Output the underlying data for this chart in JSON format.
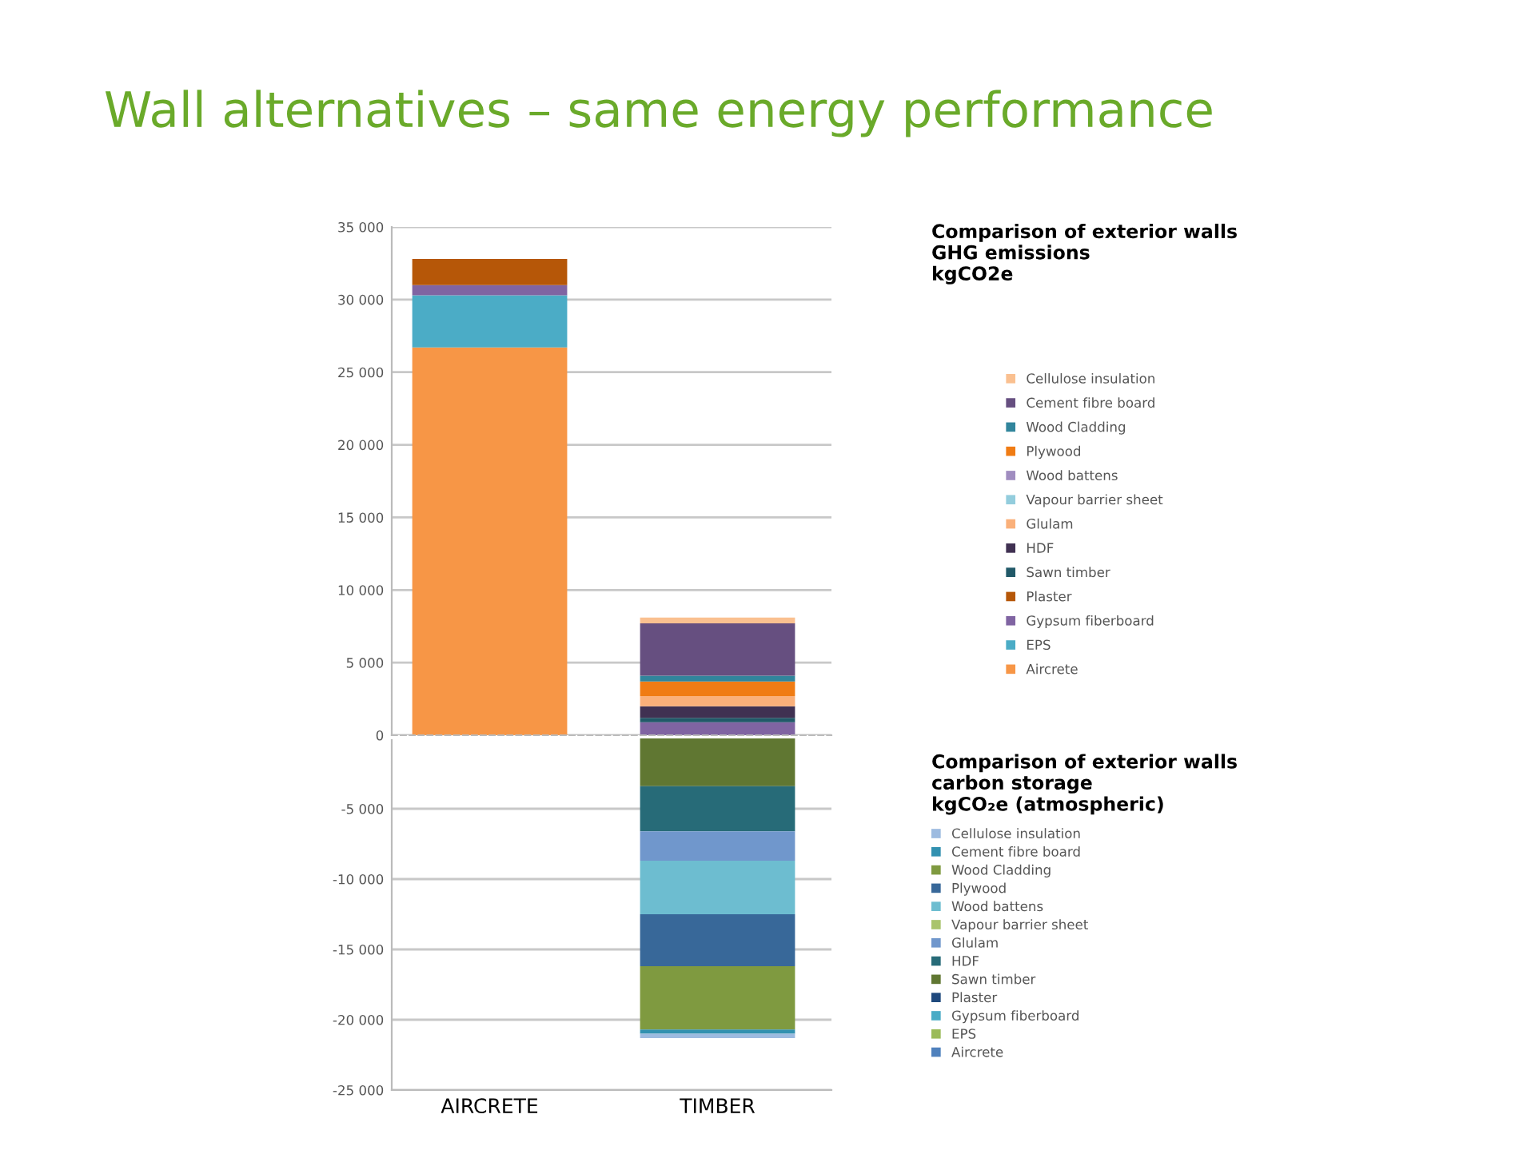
{
  "chart_data": [
    {
      "type": "bar",
      "stacked": true,
      "title": "Wall alternatives – same energy performance",
      "legend_title": "Comparison of exterior walls\nGHG emissions\nkgCO2e",
      "categories": [
        null,
        null
      ],
      "ylim": [
        0,
        35000
      ],
      "yticks": [
        {
          "value": 0,
          "label": "0"
        },
        {
          "value": 5000,
          "label": "5 000"
        },
        {
          "value": 10000,
          "label": "10 000"
        },
        {
          "value": 15000,
          "label": "15 000"
        },
        {
          "value": 20000,
          "label": "20 000"
        },
        {
          "value": 25000,
          "label": "25 000"
        },
        {
          "value": 30000,
          "label": "30 000"
        },
        {
          "value": 35000,
          "label": "35 000"
        }
      ],
      "grid": "y",
      "legend": "right",
      "tick_labels": "y",
      "series": [
        {
          "name": "Aircrete",
          "color": "#f79646",
          "values": [
            26700,
            null
          ]
        },
        {
          "name": "EPS",
          "color": "#4bacc6",
          "values": [
            3600,
            null
          ]
        },
        {
          "name": "Gypsum fiberboard",
          "color": "#8064a2",
          "values": [
            700,
            900
          ]
        },
        {
          "name": "Plaster",
          "color": "#b65708",
          "values": [
            1800,
            null
          ]
        },
        {
          "name": "Sawn timber",
          "color": "#215968",
          "values": [
            null,
            300
          ]
        },
        {
          "name": "HDF",
          "color": "#403152",
          "values": [
            null,
            800
          ]
        },
        {
          "name": "Glulam",
          "color": "#fab07a",
          "values": [
            null,
            700
          ]
        },
        {
          "name": "Vapour barrier sheet",
          "color": "#93cddd",
          "values": [
            null,
            null
          ]
        },
        {
          "name": "Wood battens",
          "color": "#a08dc0",
          "values": [
            null,
            null
          ]
        },
        {
          "name": "Plywood",
          "color": "#f07c14",
          "values": [
            null,
            1000
          ]
        },
        {
          "name": "Wood Cladding",
          "color": "#31859c",
          "values": [
            null,
            400
          ]
        },
        {
          "name": "Cement fibre board",
          "color": "#664f80",
          "values": [
            null,
            3600
          ]
        },
        {
          "name": "Cellulose insulation",
          "color": "#fac090",
          "values": [
            null,
            400
          ]
        }
      ]
    },
    {
      "type": "bar",
      "stacked": true,
      "legend_title": "Comparison of exterior walls\ncarbon storage\nkgCO₂e (atmospheric)",
      "categories": [
        "AIRCRETE",
        "TIMBER"
      ],
      "ylim": [
        -25000,
        0
      ],
      "yticks": [
        {
          "value": -25000,
          "label": "-25 000"
        },
        {
          "value": -20000,
          "label": "-20 000"
        },
        {
          "value": -15000,
          "label": "-15 000"
        },
        {
          "value": -10000,
          "label": "-10 000"
        },
        {
          "value": -5000,
          "label": "-5 000"
        }
      ],
      "grid": "y",
      "legend": "right",
      "series": [
        {
          "name": "Aircrete",
          "color": "#4f81bd",
          "values": [
            null,
            null
          ]
        },
        {
          "name": "EPS",
          "color": "#9bbb59",
          "values": [
            null,
            null
          ]
        },
        {
          "name": "Gypsum fiberboard",
          "color": "#4bacc6",
          "values": [
            null,
            null
          ]
        },
        {
          "name": "Plaster",
          "color": "#1f497d",
          "values": [
            null,
            null
          ]
        },
        {
          "name": "Sawn timber",
          "color": "#607732",
          "values": [
            null,
            -3400
          ]
        },
        {
          "name": "HDF",
          "color": "#276b78",
          "values": [
            null,
            -3200
          ]
        },
        {
          "name": "Glulam",
          "color": "#7097cc",
          "values": [
            null,
            -2100
          ]
        },
        {
          "name": "Vapour barrier sheet",
          "color": "#a9c46c",
          "values": [
            null,
            null
          ]
        },
        {
          "name": "Wood battens",
          "color": "#6dbdd0",
          "values": [
            null,
            -3800
          ]
        },
        {
          "name": "Plywood",
          "color": "#386899",
          "values": [
            null,
            -3700
          ]
        },
        {
          "name": "Wood Cladding",
          "color": "#7f9a40",
          "values": [
            null,
            -4500
          ]
        },
        {
          "name": "Cement fibre board",
          "color": "#3291b0",
          "values": [
            null,
            -300
          ]
        },
        {
          "name": "Cellulose insulation",
          "color": "#9dbbe0",
          "values": [
            null,
            -300
          ]
        }
      ]
    }
  ]
}
